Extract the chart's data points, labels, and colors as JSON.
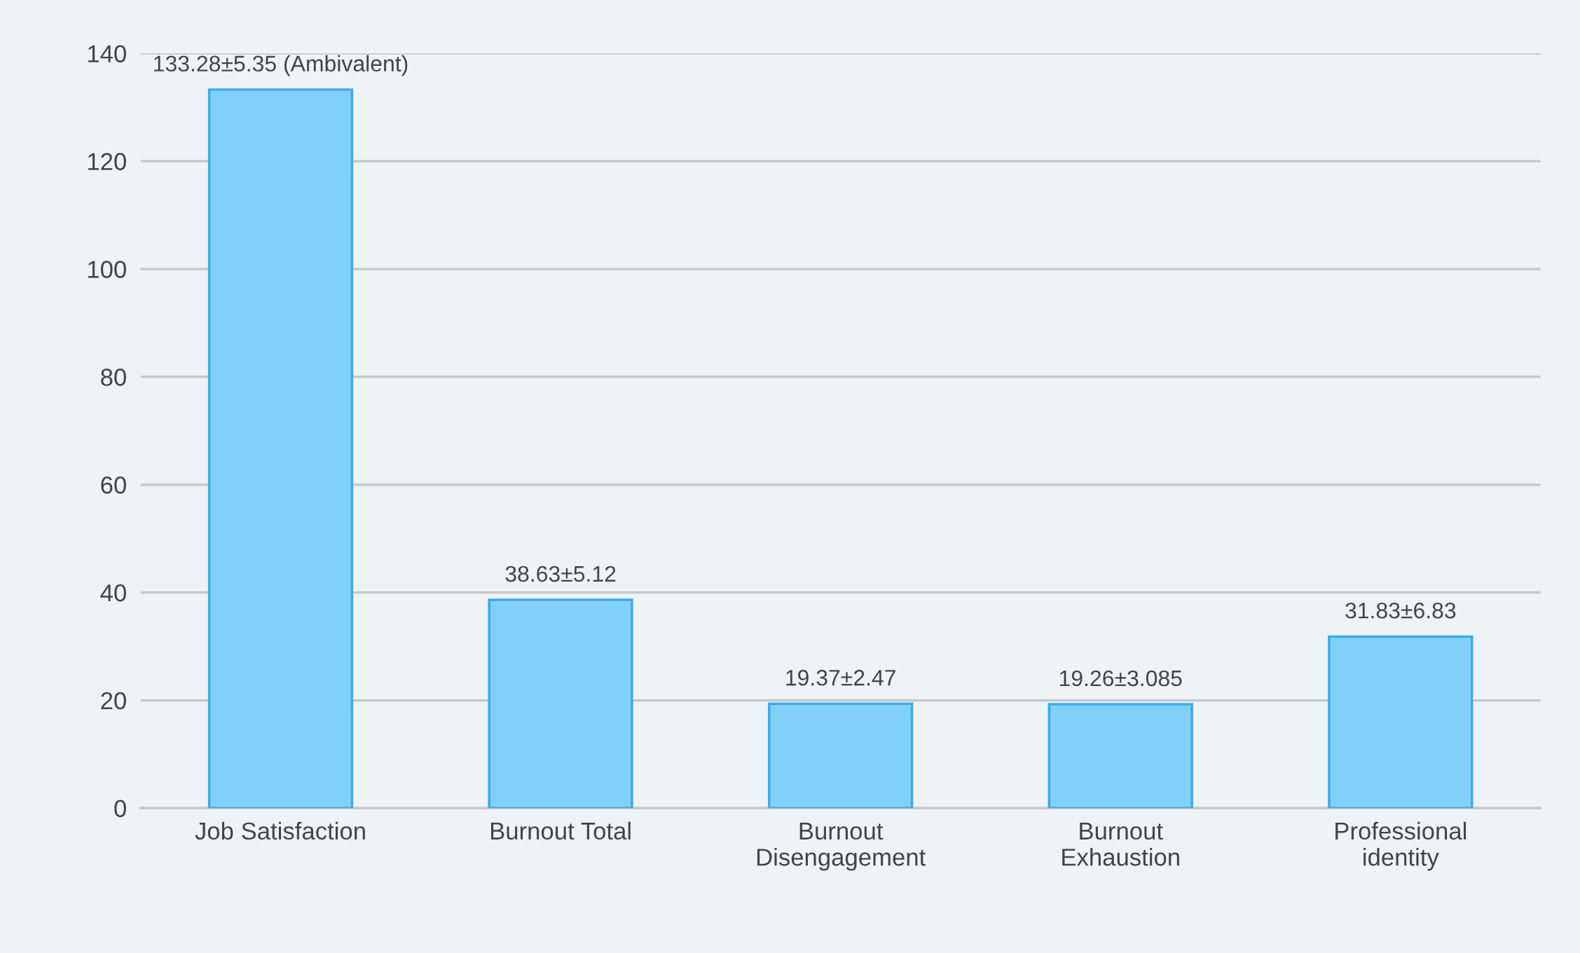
{
  "chart_data": {
    "type": "bar",
    "categories": [
      "Job Satisfaction",
      "Burnout Total",
      "Burnout\nDisengagement",
      "Burnout\nExhaustion",
      "Professional\nidentity"
    ],
    "values": [
      133.28,
      38.63,
      19.37,
      19.26,
      31.83
    ],
    "value_labels": [
      "133.28±5.35 (Ambivalent)",
      "38.63±5.12",
      "19.37±2.47",
      "19.26±3.085",
      "31.83±6.83"
    ],
    "color": "#80d0fa",
    "ylim": [
      0,
      140
    ],
    "yticks": [
      0,
      20,
      40,
      60,
      80,
      100,
      120,
      140
    ],
    "grid": "y",
    "legend": false
  }
}
